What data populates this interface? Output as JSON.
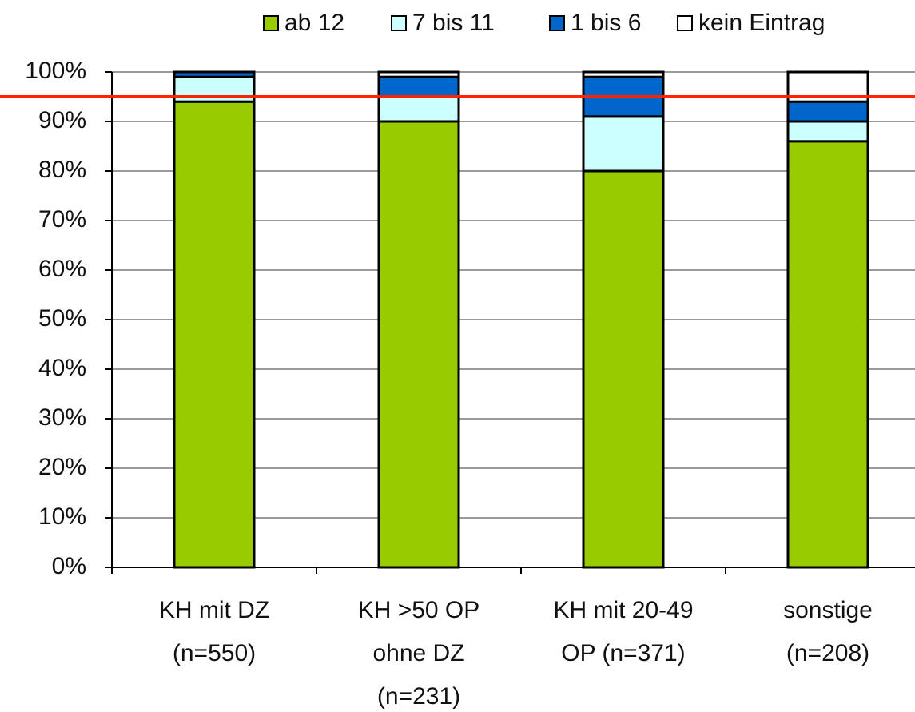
{
  "chart_data": {
    "type": "stacked_bar",
    "categories": [
      [
        "KH mit DZ",
        "(n=550)"
      ],
      [
        "KH >50 OP",
        "ohne DZ",
        "(n=231)"
      ],
      [
        "KH mit 20-49",
        "OP  (n=371)"
      ],
      [
        "sonstige",
        "(n=208)"
      ]
    ],
    "series": [
      {
        "name": "ab 12",
        "color": "#99cc00",
        "values": [
          94,
          90,
          80,
          86
        ]
      },
      {
        "name": "7 bis 11",
        "color": "#ccffff",
        "values": [
          5,
          5,
          11,
          4
        ]
      },
      {
        "name": "1 bis 6",
        "color": "#0066cc",
        "values": [
          1,
          4,
          8,
          4
        ]
      },
      {
        "name": "kein Eintrag",
        "color": "#ffffff",
        "values": [
          0,
          1,
          1,
          6
        ]
      }
    ],
    "ylim": [
      0,
      100
    ],
    "yticks": [
      {
        "value": 0,
        "label": "0%"
      },
      {
        "value": 10,
        "label": "10%"
      },
      {
        "value": 20,
        "label": "20%"
      },
      {
        "value": 30,
        "label": "30%"
      },
      {
        "value": 40,
        "label": "40%"
      },
      {
        "value": 50,
        "label": "50%"
      },
      {
        "value": 60,
        "label": "60%"
      },
      {
        "value": 70,
        "label": "70%"
      },
      {
        "value": 80,
        "label": "80%"
      },
      {
        "value": 90,
        "label": "90%"
      },
      {
        "value": 100,
        "label": "100%"
      }
    ],
    "grid": true,
    "reference_line": {
      "value": 95,
      "color": "#ff2200"
    },
    "legend": "top"
  }
}
